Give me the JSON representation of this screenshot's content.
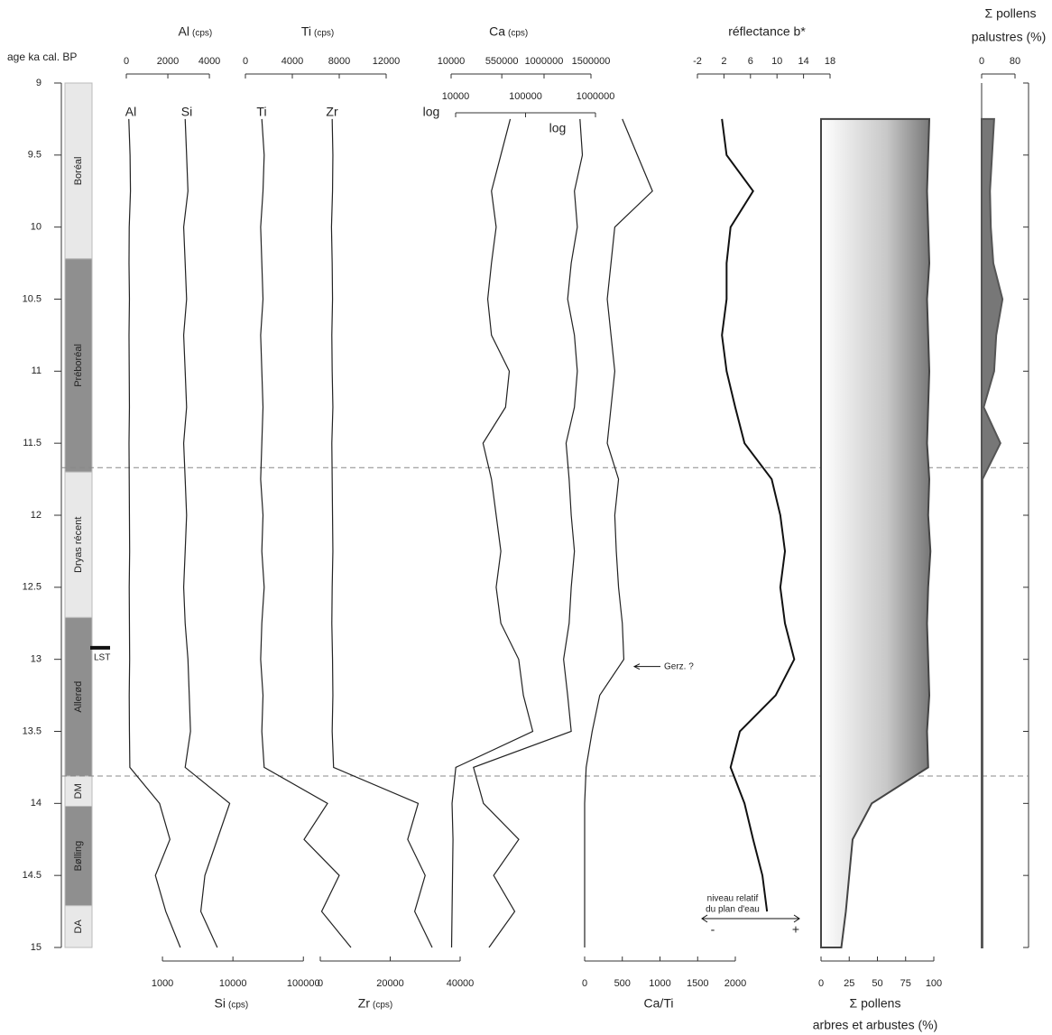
{
  "age_axis": {
    "label": "age ka cal. BP",
    "ylim": [
      9,
      15
    ],
    "yticks": [
      9,
      9.5,
      10,
      10.5,
      11,
      11.5,
      12,
      12.5,
      13,
      13.5,
      14,
      14.5,
      15
    ]
  },
  "zones": [
    {
      "label": "Boréal",
      "from": 9,
      "to": 10.22
    },
    {
      "label": "Préboréal",
      "from": 10.22,
      "to": 11.7
    },
    {
      "label": "Dryas récent",
      "from": 11.7,
      "to": 12.71
    },
    {
      "label": "Allerød",
      "from": 12.71,
      "to": 13.81
    },
    {
      "label": "DM",
      "from": 13.81,
      "to": 14.02
    },
    {
      "label": "Bølling",
      "from": 14.02,
      "to": 14.71
    },
    {
      "label": "DA",
      "from": 14.71,
      "to": 15
    }
  ],
  "dashed_lines": [
    11.67,
    13.81
  ],
  "annotations": {
    "lst": {
      "label": "LST",
      "age": 12.92
    },
    "gerz": {
      "label": "Gerz. ?",
      "age": 13.05
    },
    "water_level": {
      "lines": [
        "niveau relatif",
        "du plan d'eau"
      ],
      "minus": "-",
      "plus": "+"
    }
  },
  "chart_data": [
    {
      "type": "line",
      "title": "Al",
      "unit": "(cps)",
      "curve_label": "Al",
      "xlim": [
        0,
        5300
      ],
      "xticks": [
        0,
        2000,
        4000
      ],
      "color": "#222",
      "y": [
        9.25,
        9.5,
        9.75,
        10,
        10.25,
        10.5,
        10.75,
        11,
        11.25,
        11.5,
        11.75,
        12,
        12.25,
        12.5,
        12.75,
        13,
        13.25,
        13.5,
        13.75,
        14,
        14.25,
        14.5,
        14.75,
        15
      ],
      "values": [
        120,
        180,
        200,
        140,
        130,
        150,
        130,
        140,
        150,
        130,
        140,
        150,
        160,
        140,
        150,
        160,
        140,
        150,
        170,
        1600,
        2100,
        1400,
        1900,
        2600
      ]
    },
    {
      "type": "line",
      "title": "Si",
      "unit": "(cps)",
      "curve_label": "Si",
      "log": true,
      "xlim": [
        400,
        150000
      ],
      "xticks": [
        1000,
        10000,
        100000
      ],
      "color": "#222",
      "y": [
        9.25,
        9.5,
        9.75,
        10,
        10.25,
        10.5,
        10.75,
        11,
        11.25,
        11.5,
        11.75,
        12,
        12.25,
        12.5,
        12.75,
        13,
        13.25,
        13.5,
        13.75,
        14,
        14.25,
        14.5,
        14.75,
        15
      ],
      "values": [
        2100,
        2200,
        2300,
        2000,
        2100,
        2200,
        2000,
        2100,
        2200,
        2000,
        2100,
        2200,
        2100,
        2000,
        2100,
        2300,
        2400,
        2500,
        2100,
        9000,
        6000,
        4000,
        3500,
        6000
      ]
    },
    {
      "type": "line",
      "title": "Ti",
      "unit": "(cps)",
      "curve_label": "Ti",
      "xlim": [
        0,
        12000
      ],
      "xticks": [
        0,
        4000,
        8000,
        12000
      ],
      "color": "#222",
      "y": [
        9.25,
        9.5,
        9.75,
        10,
        10.25,
        10.5,
        10.75,
        11,
        11.25,
        11.5,
        11.75,
        12,
        12.25,
        12.5,
        12.75,
        13,
        13.25,
        13.5,
        13.75,
        14,
        14.25,
        14.5,
        14.75,
        15
      ],
      "values": [
        1400,
        1600,
        1500,
        1300,
        1400,
        1500,
        1300,
        1400,
        1500,
        1400,
        1300,
        1500,
        1400,
        1600,
        1400,
        1300,
        1500,
        1400,
        1600,
        7000,
        5000,
        8000,
        6500,
        9000
      ]
    },
    {
      "type": "line",
      "title": "Zr",
      "unit": "(cps)",
      "curve_label": "Zr",
      "xlim": [
        0,
        40000
      ],
      "xticks": [
        0,
        20000,
        40000
      ],
      "color": "#222",
      "y": [
        9.25,
        9.5,
        9.75,
        10,
        10.25,
        10.5,
        10.75,
        11,
        11.25,
        11.5,
        11.75,
        12,
        12.25,
        12.5,
        12.75,
        13,
        13.25,
        13.5,
        13.75,
        14,
        14.25,
        14.5,
        14.75,
        15
      ],
      "values": [
        3400,
        3600,
        3500,
        3200,
        3400,
        3500,
        3300,
        3400,
        3600,
        3300,
        3400,
        3500,
        3600,
        3400,
        3300,
        3500,
        3600,
        3400,
        3800,
        28000,
        25000,
        30000,
        27000,
        32000
      ]
    },
    {
      "type": "line",
      "title": "Ca",
      "unit": "(cps)",
      "xlim": [
        10000,
        1500000
      ],
      "xticks": [
        10000,
        550000,
        1000000,
        1500000
      ],
      "color": "#222",
      "y": [
        9.25,
        9.5,
        9.75,
        10,
        10.25,
        10.5,
        10.75,
        11,
        11.25,
        11.5,
        11.75,
        12,
        12.25,
        12.5,
        12.75,
        13,
        13.25,
        13.5,
        13.75,
        14,
        14.25,
        14.5,
        14.75,
        15
      ],
      "values": [
        640000,
        540000,
        440000,
        490000,
        440000,
        400000,
        440000,
        630000,
        590000,
        350000,
        440000,
        490000,
        540000,
        490000,
        540000,
        730000,
        780000,
        880000,
        60000,
        20000,
        30000,
        25000,
        20000,
        15000
      ]
    },
    {
      "type": "line",
      "axis_label": "log",
      "curve_label": "log",
      "log": true,
      "xlim": [
        10000,
        1000000
      ],
      "xticks": [
        10000,
        100000,
        1000000
      ],
      "color": "#222",
      "y": [
        9.25,
        9.5,
        9.75,
        10,
        10.25,
        10.5,
        10.75,
        11,
        11.25,
        11.5,
        11.75,
        12,
        12.25,
        12.5,
        12.75,
        13,
        13.25,
        13.5,
        13.75,
        14,
        14.25,
        14.5,
        14.75,
        15
      ],
      "values": [
        600000,
        650000,
        500000,
        550000,
        450000,
        400000,
        500000,
        550000,
        500000,
        380000,
        420000,
        450000,
        500000,
        450000,
        420000,
        350000,
        400000,
        450000,
        18000,
        25000,
        80000,
        35000,
        70000,
        30000
      ]
    },
    {
      "type": "line",
      "title": "Ca/Ti",
      "xlim": [
        0,
        2000
      ],
      "xticks": [
        0,
        500,
        1000,
        1500,
        2000
      ],
      "color": "#222",
      "y": [
        9.25,
        9.5,
        9.75,
        10,
        10.25,
        10.5,
        10.75,
        11,
        11.25,
        11.5,
        11.75,
        12,
        12.25,
        12.5,
        12.75,
        13,
        13.25,
        13.5,
        13.75,
        14,
        14.25,
        14.5,
        14.75,
        15
      ],
      "values": [
        500,
        700,
        900,
        400,
        350,
        300,
        350,
        400,
        350,
        300,
        450,
        400,
        420,
        450,
        500,
        520,
        200,
        100,
        20,
        0,
        0,
        0,
        0,
        0
      ]
    },
    {
      "type": "line",
      "title": "réflectance b*",
      "xlim": [
        -2,
        18
      ],
      "xticks": [
        -2,
        2,
        6,
        10,
        14,
        18
      ],
      "color": "#111",
      "y": [
        9.25,
        9.5,
        9.75,
        10,
        10.25,
        10.5,
        10.75,
        11,
        11.25,
        11.5,
        11.75,
        12,
        12.25,
        12.5,
        12.75,
        13,
        13.25,
        13.5,
        13.75,
        14,
        14.25,
        14.5,
        14.75,
        15
      ],
      "values": [
        1.7,
        2.4,
        6.4,
        3,
        2.4,
        2.4,
        1.7,
        2.4,
        3.7,
        5.1,
        9.2,
        10.5,
        11.2,
        10.5,
        11.2,
        12.6,
        9.8,
        4.4,
        3,
        5.1,
        6.4,
        7.8,
        8.5,
        null
      ]
    },
    {
      "type": "area",
      "title": "Σ pollens",
      "subtitle": "arbres et arbustes (%)",
      "xlim": [
        0,
        100
      ],
      "xticks": [
        0,
        25,
        50,
        75,
        100
      ],
      "color": "#444",
      "y": [
        9.25,
        9.5,
        9.75,
        10,
        10.25,
        10.5,
        10.75,
        11,
        11.25,
        11.5,
        11.75,
        12,
        12.25,
        12.5,
        12.75,
        13,
        13.25,
        13.5,
        13.75,
        14,
        14.25,
        14.5,
        14.75,
        15
      ],
      "values": [
        96,
        95,
        94,
        95,
        96,
        94,
        95,
        96,
        95,
        94,
        96,
        95,
        97,
        95,
        94,
        95,
        96,
        94,
        95,
        45,
        28,
        25,
        22,
        18
      ]
    },
    {
      "type": "area",
      "title": "Σ pollens",
      "subtitle": "palustres (%)",
      "xlim": [
        0,
        80
      ],
      "xticks": [
        0,
        80
      ],
      "color": "#555",
      "y": [
        9.25,
        9.5,
        9.75,
        10,
        10.25,
        10.5,
        10.75,
        11,
        11.25,
        11.5,
        11.75,
        12,
        12.25,
        12.5,
        12.75,
        13,
        13.25,
        13.5,
        13.75,
        14,
        14.25,
        14.5,
        14.75,
        15
      ],
      "values": [
        30,
        25,
        20,
        22,
        28,
        50,
        35,
        30,
        5,
        45,
        2,
        2,
        2,
        2,
        2,
        2,
        2,
        2,
        2,
        2,
        2,
        2,
        2,
        2
      ]
    }
  ]
}
